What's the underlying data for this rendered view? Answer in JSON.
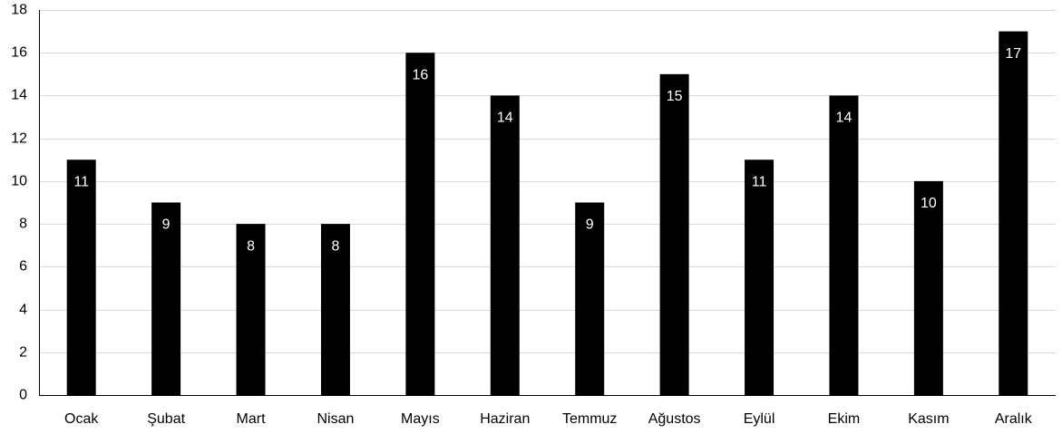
{
  "chart_data": {
    "type": "bar",
    "categories": [
      "Ocak",
      "Şubat",
      "Mart",
      "Nisan",
      "Mayıs",
      "Haziran",
      "Temmuz",
      "Ağustos",
      "Eylül",
      "Ekim",
      "Kasım",
      "Aralık"
    ],
    "series": [
      {
        "values": [
          11,
          9,
          8,
          8,
          16,
          14,
          9,
          15,
          11,
          14,
          10,
          17
        ]
      }
    ],
    "title": "",
    "xlabel": "",
    "ylabel": "",
    "ylim": [
      0,
      18
    ],
    "yticks": [
      0,
      2,
      4,
      6,
      8,
      10,
      12,
      14,
      16,
      18
    ],
    "grid": true,
    "legend": "none",
    "bar_color": "#000000",
    "data_label_color": "#ffffff",
    "grid_color": "#d9d9d9"
  }
}
